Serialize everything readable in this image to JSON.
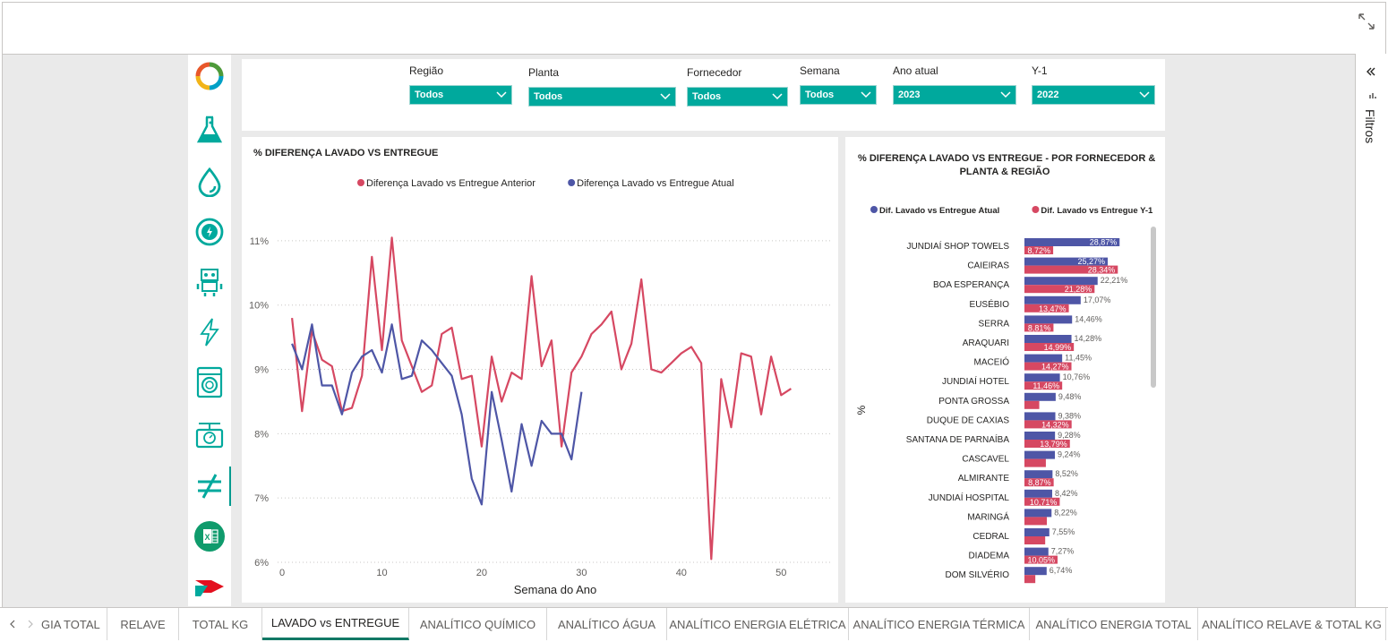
{
  "filters": [
    {
      "label": "Região",
      "value": "Todos"
    },
    {
      "label": "Planta",
      "value": "Todos"
    },
    {
      "label": "Fornecedor",
      "value": "Todos"
    },
    {
      "label": "Semana",
      "value": "Todos"
    },
    {
      "label": "Ano atual",
      "value": "2023"
    },
    {
      "label": "Y-1",
      "value": "2022"
    }
  ],
  "filters_pane": {
    "label": "Filtros"
  },
  "nav_icons": [
    "recycle-icon",
    "flask-icon",
    "water-drop-icon",
    "energy-cycle-icon",
    "robot-icon",
    "lightning-icon",
    "washing-machine-icon",
    "scale-icon",
    "not-equal-icon",
    "excel-icon",
    "brand-logo-icon"
  ],
  "tabs": [
    {
      "label": "GIA TOTAL",
      "active": false
    },
    {
      "label": "RELAVE",
      "active": false
    },
    {
      "label": "TOTAL KG",
      "active": false
    },
    {
      "label": "LAVADO vs ENTREGUE",
      "active": true
    },
    {
      "label": "ANALÍTICO QUÍMICO",
      "active": false
    },
    {
      "label": "ANALÍTICO ÁGUA",
      "active": false
    },
    {
      "label": "ANALÍTICO ENERGIA ELÉTRICA",
      "active": false
    },
    {
      "label": "ANALÍTICO ENERGIA TÉRMICA",
      "active": false
    },
    {
      "label": "ANALÍTICO ENERGIA TOTAL",
      "active": false
    },
    {
      "label": "ANALÍTICO RELAVE & TOTAL KG",
      "active": false
    }
  ],
  "colors": {
    "teal": "#00a99d",
    "anterior": "#d64862",
    "atual": "#4e56a6"
  },
  "chart_data": [
    {
      "type": "line",
      "title": "% DIFERENÇA LAVADO VS ENTREGUE",
      "xlabel": "Semana do Ano",
      "ylabel": "",
      "legend_position": "top",
      "grid": true,
      "xlim": [
        0,
        55
      ],
      "ylim": [
        6,
        11.5
      ],
      "x_ticks": [
        0,
        10,
        20,
        30,
        40,
        50
      ],
      "y_ticks": [
        6,
        7,
        8,
        9,
        10,
        11
      ],
      "y_tick_labels": [
        "6%",
        "7%",
        "8%",
        "9%",
        "10%",
        "11%"
      ],
      "series": [
        {
          "name": "Diferença Lavado vs Entregue Anterior",
          "color": "#d64862",
          "x": [
            1,
            2,
            3,
            4,
            5,
            6,
            7,
            8,
            9,
            10,
            11,
            12,
            13,
            14,
            15,
            16,
            17,
            18,
            19,
            20,
            21,
            22,
            23,
            24,
            25,
            26,
            27,
            28,
            29,
            30,
            31,
            32,
            33,
            34,
            35,
            36,
            37,
            38,
            39,
            40,
            41,
            42,
            43,
            44,
            45,
            46,
            47,
            48,
            49,
            50,
            51,
            52
          ],
          "y": [
            9.8,
            8.35,
            9.6,
            9.15,
            9.05,
            8.35,
            8.4,
            8.9,
            10.75,
            9.3,
            11.05,
            9.45,
            9.05,
            8.65,
            8.75,
            9.55,
            9.65,
            8.85,
            8.9,
            7.8,
            9.2,
            8.5,
            8.95,
            8.85,
            10.45,
            9.05,
            9.45,
            7.8,
            8.95,
            9.2,
            9.55,
            9.7,
            9.9,
            9.0,
            9.4,
            10.4,
            9.0,
            8.95,
            9.1,
            9.25,
            9.35,
            9.1,
            6.05,
            8.85,
            8.1,
            9.25,
            9.2,
            8.3,
            9.2,
            8.6,
            8.7,
            null
          ]
        },
        {
          "name": "Diferença Lavado vs Entregue Atual",
          "color": "#4e56a6",
          "x": [
            1,
            2,
            3,
            4,
            5,
            6,
            7,
            8,
            9,
            10,
            11,
            12,
            13,
            14,
            15,
            16,
            17,
            18,
            19,
            20,
            21,
            22,
            23,
            24,
            25,
            26,
            27,
            28,
            29,
            30
          ],
          "y": [
            9.4,
            9.0,
            9.7,
            8.75,
            8.75,
            8.3,
            8.95,
            9.2,
            9.3,
            8.95,
            9.7,
            8.85,
            8.9,
            9.45,
            9.3,
            9.1,
            8.9,
            8.3,
            7.3,
            6.9,
            8.65,
            7.9,
            7.1,
            8.15,
            7.5,
            8.2,
            8.0,
            8.0,
            7.6,
            8.65
          ]
        }
      ]
    },
    {
      "type": "bar",
      "orientation": "horizontal",
      "title": "% DIFERENÇA LAVADO VS ENTREGUE - POR FORNECEDOR & PLANTA & REGIÃO",
      "ylabel": "%",
      "legend_position": "top",
      "categories": [
        "JUNDIAÍ SHOP TOWELS",
        "CAIEIRAS",
        "BOA ESPERANÇA",
        "EUSÉBIO",
        "SERRA",
        "ARAQUARI",
        "MACEIÓ",
        "JUNDIAÍ HOTEL",
        "PONTA GROSSA",
        "DUQUE DE CAXIAS",
        "SANTANA DE PARNAÍBA",
        "CASCAVEL",
        "ALMIRANTE",
        "JUNDIAÍ HOSPITAL",
        "MARINGÁ",
        "CEDRAL",
        "DIADEMA",
        "DOM SILVÉRIO"
      ],
      "series": [
        {
          "name": "Dif. Lavado vs Entregue Atual",
          "color": "#4e56a6",
          "values": [
            28.87,
            25.27,
            22.21,
            17.07,
            14.46,
            14.28,
            11.45,
            10.76,
            9.48,
            9.38,
            9.28,
            9.24,
            8.52,
            8.42,
            8.22,
            7.55,
            7.27,
            6.74
          ],
          "labels": [
            "28,87%",
            "25,27%",
            "22,21%",
            "17,07%",
            "14,46%",
            "14,28%",
            "11,45%",
            "10,76%",
            "9,48%",
            "9,38%",
            "9,28%",
            "9,24%",
            "8,52%",
            "8,42%",
            "8,22%",
            "7,55%",
            "7,27%",
            "6,74%"
          ]
        },
        {
          "name": "Dif. Lavado vs Entregue Y-1",
          "color": "#d64862",
          "values": [
            8.72,
            28.34,
            21.28,
            13.47,
            8.81,
            14.99,
            14.27,
            11.46,
            4.5,
            14.32,
            13.79,
            6.5,
            8.87,
            10.71,
            6.8,
            6.3,
            10.05,
            3.3
          ],
          "labels": [
            "8,72%",
            "28,34%",
            "21,28%",
            "13,47%",
            "8,81%",
            "14,99%",
            "14,27%",
            "11,46%",
            "",
            "14,32%",
            "13,79%",
            "",
            "8,87%",
            "10,71%",
            "",
            "",
            "10,05%",
            ""
          ]
        }
      ]
    }
  ]
}
